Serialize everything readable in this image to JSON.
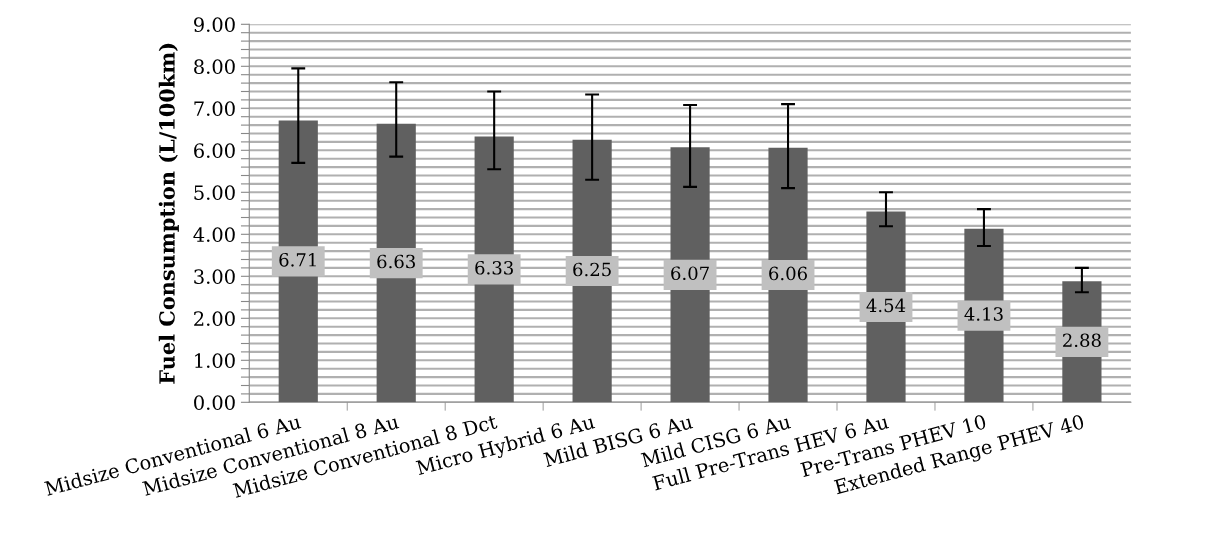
{
  "chart_data": {
    "type": "bar",
    "ylabel": "Fuel Consumption (L/100km)",
    "categories": [
      "Midsize Conventional 6 Au",
      "Midsize Conventional 8 Au",
      "Midsize Conventional 8 Dct",
      "Micro Hybrid 6 Au",
      "Mild BISG 6 Au",
      "Mild CISG 6 Au",
      "Full Pre-Trans HEV 6 Au",
      "Pre-Trans PHEV 10",
      "Extended Range PHEV 40"
    ],
    "values": [
      6.71,
      6.63,
      6.33,
      6.25,
      6.07,
      6.06,
      4.54,
      4.13,
      2.88
    ],
    "color": "#606060",
    "errors": [
      [
        5.7,
        7.95
      ],
      [
        5.85,
        7.62
      ],
      [
        5.55,
        7.4
      ],
      [
        5.3,
        7.33
      ],
      [
        5.13,
        7.08
      ],
      [
        5.1,
        7.1
      ],
      [
        4.19,
        5.0
      ],
      [
        3.72,
        4.6
      ],
      [
        2.62,
        3.2
      ]
    ],
    "data_labels": true,
    "ylim": [
      0,
      9
    ],
    "yticks": [
      {
        "value": 0,
        "label": "0.00"
      },
      {
        "value": 0.2,
        "label": null
      },
      {
        "value": 0.4,
        "label": null
      },
      {
        "value": 0.6,
        "label": null
      },
      {
        "value": 0.8,
        "label": null
      },
      {
        "value": 1,
        "label": "1.00"
      },
      {
        "value": 1.2,
        "label": null
      },
      {
        "value": 1.4,
        "label": null
      },
      {
        "value": 1.6,
        "label": null
      },
      {
        "value": 1.8,
        "label": null
      },
      {
        "value": 2,
        "label": "2.00"
      },
      {
        "value": 2.2,
        "label": null
      },
      {
        "value": 2.4,
        "label": null
      },
      {
        "value": 2.6,
        "label": null
      },
      {
        "value": 2.8,
        "label": null
      },
      {
        "value": 3,
        "label": "3.00"
      },
      {
        "value": 3.2,
        "label": null
      },
      {
        "value": 3.4,
        "label": null
      },
      {
        "value": 3.6,
        "label": null
      },
      {
        "value": 3.8,
        "label": null
      },
      {
        "value": 4,
        "label": "4.00"
      },
      {
        "value": 4.2,
        "label": null
      },
      {
        "value": 4.4,
        "label": null
      },
      {
        "value": 4.6,
        "label": null
      },
      {
        "value": 4.8,
        "label": null
      },
      {
        "value": 5,
        "label": "5.00"
      },
      {
        "value": 5.2,
        "label": null
      },
      {
        "value": 5.4,
        "label": null
      },
      {
        "value": 5.6,
        "label": null
      },
      {
        "value": 5.8,
        "label": null
      },
      {
        "value": 6,
        "label": "6.00"
      },
      {
        "value": 6.2,
        "label": null
      },
      {
        "value": 6.4,
        "label": null
      },
      {
        "value": 6.6,
        "label": null
      },
      {
        "value": 6.8,
        "label": null
      },
      {
        "value": 7,
        "label": "7.00"
      },
      {
        "value": 7.2,
        "label": null
      },
      {
        "value": 7.4,
        "label": null
      },
      {
        "value": 7.6,
        "label": null
      },
      {
        "value": 7.8,
        "label": null
      },
      {
        "value": 8,
        "label": "8.00"
      },
      {
        "value": 8.2,
        "label": null
      },
      {
        "value": 8.4,
        "label": null
      },
      {
        "value": 8.6,
        "label": null
      },
      {
        "value": 8.8,
        "label": null
      },
      {
        "value": 9,
        "label": "9.00"
      }
    ],
    "grid": "y",
    "legend": false
  }
}
